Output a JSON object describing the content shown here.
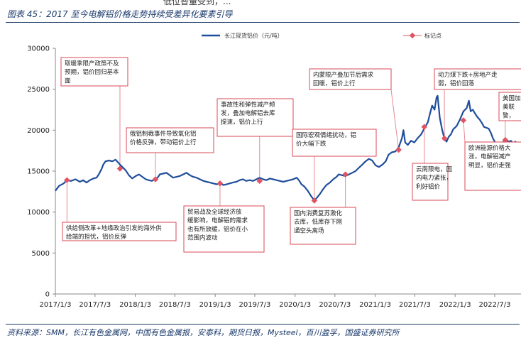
{
  "figure_title": "图表 45：2017 至今电解铝价格走势持续受差异化要素引导",
  "top_cut_caption": "低位替量受到，...",
  "source": "资料来源：SMM，长江有色金属网，中国有色金属报，安泰科，期货日报，Mysteel，百川盈孚，国盛证券研究所",
  "colors": {
    "series": "#1f4e9c",
    "marker": "#e05563",
    "box_border": "#d94a57",
    "connector": "#e58a92",
    "title": "#1b3a6b"
  },
  "chart_data": {
    "type": "line",
    "title": "",
    "xlabel": "",
    "ylabel": "",
    "ylim": [
      0,
      30000
    ],
    "yticks": [
      0,
      5000,
      10000,
      15000,
      20000,
      25000,
      30000
    ],
    "xlim": [
      "2017-01-03",
      "2022-10-31"
    ],
    "xticks": [
      "2017/1/3",
      "2017/7/3",
      "2018/1/3",
      "2018/7/3",
      "2019/1/3",
      "2019/7/3",
      "2020/1/3",
      "2020/7/3",
      "2021/1/3",
      "2021/7/3",
      "2022/1/3",
      "2022/7/3"
    ],
    "grid": false,
    "legend_position": "top",
    "series": [
      {
        "name": "长江现货铝价（元/吨）",
        "points": [
          [
            "2017-01-03",
            12600
          ],
          [
            "2017-01-20",
            13200
          ],
          [
            "2017-02-10",
            13500
          ],
          [
            "2017-02-25",
            13900
          ],
          [
            "2017-03-15",
            13800
          ],
          [
            "2017-04-05",
            14000
          ],
          [
            "2017-04-25",
            13700
          ],
          [
            "2017-05-10",
            13900
          ],
          [
            "2017-05-25",
            13600
          ],
          [
            "2017-06-10",
            13900
          ],
          [
            "2017-06-25",
            14100
          ],
          [
            "2017-07-10",
            14200
          ],
          [
            "2017-07-20",
            14600
          ],
          [
            "2017-08-01",
            15200
          ],
          [
            "2017-08-10",
            15800
          ],
          [
            "2017-08-20",
            16200
          ],
          [
            "2017-09-05",
            16300
          ],
          [
            "2017-09-20",
            16200
          ],
          [
            "2017-10-05",
            16400
          ],
          [
            "2017-10-15",
            16100
          ],
          [
            "2017-10-25",
            15800
          ],
          [
            "2017-11-05",
            15500
          ],
          [
            "2017-11-20",
            15100
          ],
          [
            "2017-12-05",
            14500
          ],
          [
            "2017-12-20",
            14100
          ],
          [
            "2018-01-05",
            14400
          ],
          [
            "2018-01-20",
            14600
          ],
          [
            "2018-02-05",
            14300
          ],
          [
            "2018-02-20",
            14000
          ],
          [
            "2018-03-05",
            13900
          ],
          [
            "2018-03-20",
            13800
          ],
          [
            "2018-04-05",
            14100
          ],
          [
            "2018-04-15",
            14200
          ],
          [
            "2018-04-25",
            14600
          ],
          [
            "2018-05-10",
            14700
          ],
          [
            "2018-05-25",
            14800
          ],
          [
            "2018-06-10",
            14500
          ],
          [
            "2018-06-25",
            14200
          ],
          [
            "2018-07-10",
            14300
          ],
          [
            "2018-07-25",
            14400
          ],
          [
            "2018-08-10",
            14600
          ],
          [
            "2018-08-25",
            14800
          ],
          [
            "2018-09-10",
            14500
          ],
          [
            "2018-09-25",
            14300
          ],
          [
            "2018-10-10",
            14200
          ],
          [
            "2018-10-25",
            14000
          ],
          [
            "2018-11-10",
            13800
          ],
          [
            "2018-11-25",
            13700
          ],
          [
            "2018-12-10",
            13600
          ],
          [
            "2018-12-25",
            13500
          ],
          [
            "2019-01-10",
            13400
          ],
          [
            "2019-01-25",
            13500
          ],
          [
            "2019-02-10",
            13300
          ],
          [
            "2019-02-25",
            13400
          ],
          [
            "2019-03-10",
            13500
          ],
          [
            "2019-03-25",
            13600
          ],
          [
            "2019-04-10",
            13700
          ],
          [
            "2019-04-25",
            13900
          ],
          [
            "2019-05-10",
            14000
          ],
          [
            "2019-05-25",
            13800
          ],
          [
            "2019-06-10",
            13900
          ],
          [
            "2019-06-25",
            13800
          ],
          [
            "2019-07-10",
            14000
          ],
          [
            "2019-07-25",
            14200
          ],
          [
            "2019-08-10",
            14000
          ],
          [
            "2019-08-25",
            13900
          ],
          [
            "2019-09-10",
            14100
          ],
          [
            "2019-09-25",
            14000
          ],
          [
            "2019-10-10",
            13900
          ],
          [
            "2019-10-25",
            13800
          ],
          [
            "2019-11-10",
            13700
          ],
          [
            "2019-11-25",
            13800
          ],
          [
            "2019-12-10",
            13900
          ],
          [
            "2019-12-25",
            14000
          ],
          [
            "2020-01-10",
            14200
          ],
          [
            "2020-01-20",
            13900
          ],
          [
            "2020-02-01",
            13400
          ],
          [
            "2020-02-15",
            13100
          ],
          [
            "2020-03-01",
            12600
          ],
          [
            "2020-03-15",
            12000
          ],
          [
            "2020-03-31",
            11400
          ],
          [
            "2020-04-10",
            11700
          ],
          [
            "2020-04-25",
            12200
          ],
          [
            "2020-05-10",
            12800
          ],
          [
            "2020-05-25",
            13300
          ],
          [
            "2020-06-10",
            13600
          ],
          [
            "2020-06-25",
            14000
          ],
          [
            "2020-07-10",
            14300
          ],
          [
            "2020-07-20",
            14600
          ],
          [
            "2020-08-05",
            14500
          ],
          [
            "2020-08-20",
            14400
          ],
          [
            "2020-09-05",
            14600
          ],
          [
            "2020-09-20",
            14800
          ],
          [
            "2020-10-05",
            15000
          ],
          [
            "2020-10-20",
            15400
          ],
          [
            "2020-11-05",
            15800
          ],
          [
            "2020-11-20",
            16200
          ],
          [
            "2020-12-05",
            16500
          ],
          [
            "2020-12-20",
            16300
          ],
          [
            "2021-01-05",
            15700
          ],
          [
            "2021-01-20",
            15500
          ],
          [
            "2021-02-05",
            15800
          ],
          [
            "2021-02-20",
            16200
          ],
          [
            "2021-03-05",
            17000
          ],
          [
            "2021-03-20",
            17300
          ],
          [
            "2021-04-05",
            17400
          ],
          [
            "2021-04-20",
            17900
          ],
          [
            "2021-05-05",
            19000
          ],
          [
            "2021-05-12",
            20000
          ],
          [
            "2021-05-20",
            18500
          ],
          [
            "2021-06-01",
            18200
          ],
          [
            "2021-06-15",
            18700
          ],
          [
            "2021-07-01",
            18500
          ],
          [
            "2021-07-15",
            19000
          ],
          [
            "2021-08-01",
            19500
          ],
          [
            "2021-08-15",
            20200
          ],
          [
            "2021-09-01",
            21000
          ],
          [
            "2021-09-10",
            22000
          ],
          [
            "2021-09-20",
            23000
          ],
          [
            "2021-10-01",
            22500
          ],
          [
            "2021-10-10",
            24000
          ],
          [
            "2021-10-15",
            24200
          ],
          [
            "2021-10-25",
            21500
          ],
          [
            "2021-11-05",
            20000
          ],
          [
            "2021-11-15",
            19000
          ],
          [
            "2021-11-25",
            18600
          ],
          [
            "2021-12-05",
            19200
          ],
          [
            "2021-12-15",
            19500
          ],
          [
            "2021-12-25",
            20100
          ],
          [
            "2022-01-10",
            20500
          ],
          [
            "2022-01-25",
            21300
          ],
          [
            "2022-02-10",
            22300
          ],
          [
            "2022-02-25",
            22700
          ],
          [
            "2022-03-07",
            23600
          ],
          [
            "2022-03-15",
            22300
          ],
          [
            "2022-03-25",
            22500
          ],
          [
            "2022-04-05",
            22000
          ],
          [
            "2022-04-15",
            21600
          ],
          [
            "2022-04-25",
            21300
          ],
          [
            "2022-05-05",
            20900
          ],
          [
            "2022-05-15",
            20400
          ],
          [
            "2022-05-25",
            20300
          ],
          [
            "2022-06-05",
            20200
          ],
          [
            "2022-06-15",
            19700
          ],
          [
            "2022-06-25",
            19000
          ],
          [
            "2022-07-05",
            18500
          ],
          [
            "2022-07-15",
            17800
          ],
          [
            "2022-07-25",
            18100
          ],
          [
            "2022-08-05",
            18500
          ],
          [
            "2022-08-15",
            18600
          ],
          [
            "2022-08-25",
            18800
          ],
          [
            "2022-09-05",
            18600
          ],
          [
            "2022-09-15",
            18700
          ],
          [
            "2022-09-25",
            18400
          ],
          [
            "2022-10-05",
            18600
          ],
          [
            "2022-10-20",
            18200
          ],
          [
            "2022-10-31",
            17900
          ]
        ]
      },
      {
        "name": "标记点",
        "points": [
          [
            "2017-02-25",
            13900
          ],
          [
            "2017-10-25",
            15300
          ],
          [
            "2018-04-05",
            14000
          ],
          [
            "2019-01-25",
            13500
          ],
          [
            "2019-07-25",
            13800
          ],
          [
            "2020-03-31",
            11400
          ],
          [
            "2020-08-20",
            14600
          ],
          [
            "2021-04-20",
            17600
          ],
          [
            "2021-08-15",
            20400
          ],
          [
            "2021-11-15",
            19000
          ],
          [
            "2022-02-10",
            21200
          ],
          [
            "2022-08-20",
            18800
          ]
        ]
      }
    ],
    "annotations": [
      {
        "text": [
          "供给侧改革+地缘政治引发的海外供",
          "给端的担忧，铝价反弹"
        ],
        "anchor": "2017-02-25"
      },
      {
        "text": [
          "取暖季限产政策不及",
          "预期，铝价回归基本",
          "面"
        ],
        "anchor": "2017-10-25"
      },
      {
        "text": [
          "俄铝制裁事件导致氧化铝",
          "价格反弹，带动铝价上行"
        ],
        "anchor": "2018-04-05"
      },
      {
        "text": [
          "贸易战及全球经济放",
          "缓影响，电解铝的需求",
          "也有所放缓，铝价在小",
          "范围内波动"
        ],
        "anchor": "2019-01-25"
      },
      {
        "text": [
          "事故性和弹性减产频",
          "发，叠加电解铝去库",
          "提速，铝价上行"
        ],
        "anchor": "2019-07-25"
      },
      {
        "text": [
          "国际宏观情绪扰动，铝",
          "价大幅下跌"
        ],
        "anchor": "2020-03-31"
      },
      {
        "text": [
          "国内消费复苏激化",
          "去库，低库存下刚",
          "通空头离场"
        ],
        "anchor": "2020-08-20"
      },
      {
        "text": [
          "内蒙限产叠加节后需求",
          "回暖，铝价上行"
        ],
        "anchor": "2021-04-20"
      },
      {
        "text": [
          "云南限电，国",
          "内电力紧张，",
          "利好铝价"
        ],
        "anchor": "2021-08-15"
      },
      {
        "text": [
          "动力煤下跌+房地产走",
          "弱，铝价回落"
        ],
        "anchor": "2021-11-15"
      },
      {
        "text": [
          "欧洲能源价格大",
          "涨，电解铝减产",
          "明显，铝价走强"
        ],
        "anchor": "2022-02-10"
      },
      {
        "text": [
          "美国加",
          "美联",
          "警，"
        ],
        "anchor": "2022-08-20"
      }
    ]
  }
}
